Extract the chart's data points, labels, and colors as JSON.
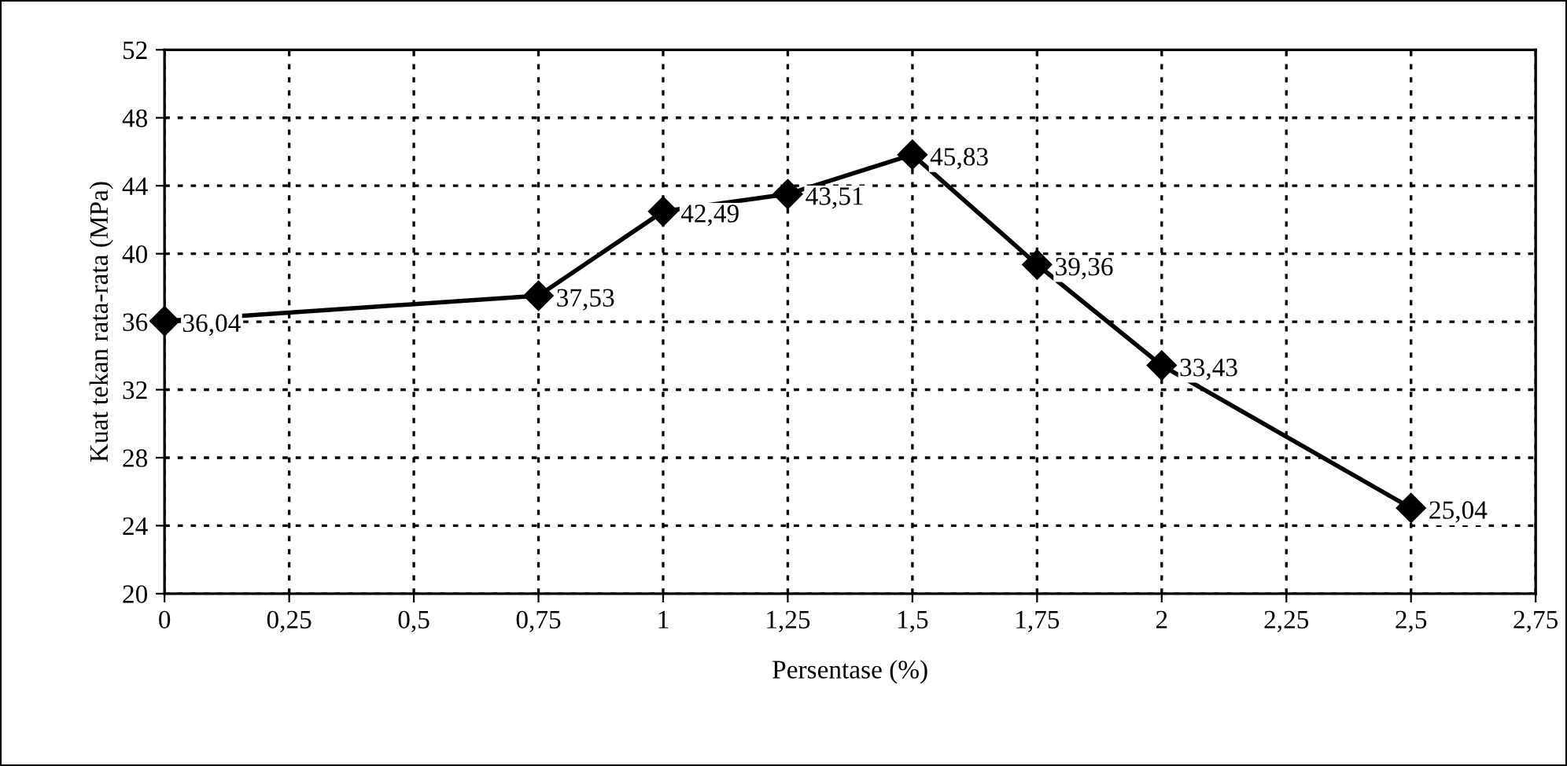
{
  "chart_data": {
    "type": "line",
    "xlabel": "Persentase (%)",
    "ylabel": "Kuat tekan rata-rata (MPa)",
    "x": [
      0,
      0.75,
      1,
      1.25,
      1.5,
      1.75,
      2,
      2.5
    ],
    "series": [
      {
        "color": "#000000",
        "values": [
          36.04,
          37.53,
          42.49,
          43.51,
          45.83,
          39.36,
          33.43,
          25.04
        ],
        "value_labels": [
          "36,04",
          "37,53",
          "42,49",
          "43,51",
          "45,83",
          "39,36",
          "33,43",
          "25,04"
        ]
      }
    ],
    "xlim": [
      0,
      2.75
    ],
    "xticks": [
      0,
      {
        "value": 0.25,
        "label": "0,25"
      },
      {
        "value": 0.5,
        "label": "0,5"
      },
      {
        "value": 0.75,
        "label": "0,75"
      },
      1,
      {
        "value": 1.25,
        "label": "1,25"
      },
      {
        "value": 1.5,
        "label": "1,5"
      },
      {
        "value": 1.75,
        "label": "1,75"
      },
      2,
      {
        "value": 2.25,
        "label": "2,25"
      },
      {
        "value": 2.5,
        "label": "2,5"
      },
      {
        "value": 2.75,
        "label": "2,75"
      }
    ],
    "ylim": [
      20,
      52
    ],
    "yticks": [
      20,
      24,
      28,
      32,
      36,
      40,
      44,
      48,
      52
    ],
    "grid": true,
    "marker": "diamond",
    "line_style": "solid"
  }
}
